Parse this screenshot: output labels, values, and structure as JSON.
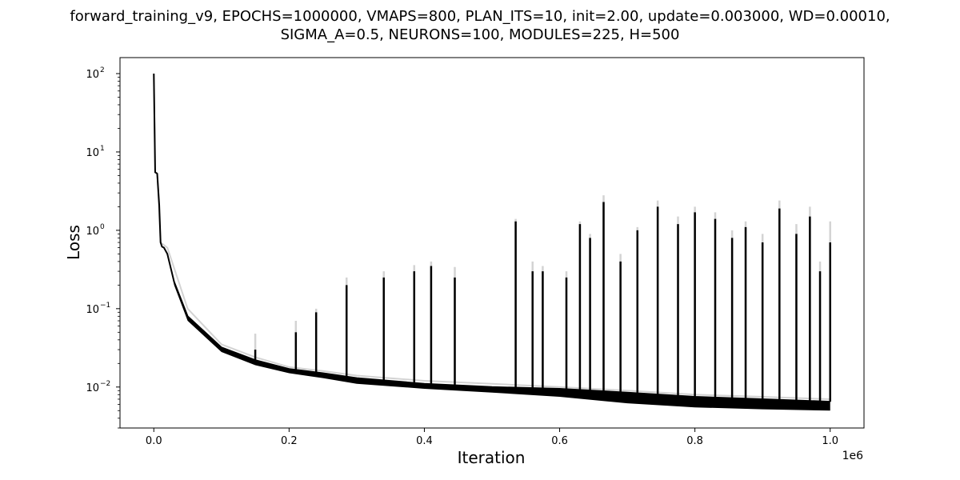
{
  "chart_data": {
    "type": "line",
    "title": "forward_training_v9, EPOCHS=1000000, VMAPS=800, PLAN_ITS=10, init=2.00, update=0.003000, WD=0.00010,",
    "subtitle": "SIGMA_A=0.5, NEURONS=100, MODULES=225, H=500",
    "xlabel": "Iteration",
    "ylabel": "Loss",
    "x_scale_label": "1e6",
    "xlim": [
      -0.05,
      1.05
    ],
    "ylim": [
      0.003,
      160
    ],
    "y_scale": "log",
    "grid": false,
    "x_tick_values": [
      0.0,
      0.2,
      0.4,
      0.6,
      0.8,
      1.0
    ],
    "x_tick_labels": [
      "0.0",
      "0.2",
      "0.4",
      "0.6",
      "0.8",
      "1.0"
    ],
    "y_ticks": [
      {
        "value": 0.01,
        "base": "10",
        "exp": "−2"
      },
      {
        "value": 0.1,
        "base": "10",
        "exp": "−1"
      },
      {
        "value": 1,
        "base": "10",
        "exp": "0"
      },
      {
        "value": 10,
        "base": "10",
        "exp": "1"
      },
      {
        "value": 100,
        "base": "10",
        "exp": "2"
      }
    ],
    "series": [
      {
        "color": "#d3d3d3",
        "x": [
          0.0,
          0.002,
          0.005,
          0.01,
          0.02,
          0.05,
          0.1,
          0.15,
          0.2,
          0.25,
          0.3,
          0.4,
          0.5,
          0.6,
          0.7,
          0.8,
          0.9,
          1.0
        ],
        "y": [
          100,
          5.5,
          5.3,
          0.7,
          0.6,
          0.1,
          0.035,
          0.024,
          0.018,
          0.016,
          0.014,
          0.012,
          0.011,
          0.01,
          0.009,
          0.008,
          0.0075,
          0.007
        ],
        "spikes": [
          {
            "x": 0.15,
            "y": 0.048
          },
          {
            "x": 0.21,
            "y": 0.07
          },
          {
            "x": 0.24,
            "y": 0.1
          },
          {
            "x": 0.285,
            "y": 0.25
          },
          {
            "x": 0.34,
            "y": 0.3
          },
          {
            "x": 0.385,
            "y": 0.36
          },
          {
            "x": 0.41,
            "y": 0.4
          },
          {
            "x": 0.445,
            "y": 0.34
          },
          {
            "x": 0.535,
            "y": 1.4
          },
          {
            "x": 0.56,
            "y": 0.4
          },
          {
            "x": 0.575,
            "y": 0.35
          },
          {
            "x": 0.61,
            "y": 0.3
          },
          {
            "x": 0.63,
            "y": 1.3
          },
          {
            "x": 0.645,
            "y": 0.9
          },
          {
            "x": 0.665,
            "y": 2.8
          },
          {
            "x": 0.69,
            "y": 0.5
          },
          {
            "x": 0.715,
            "y": 1.1
          },
          {
            "x": 0.745,
            "y": 2.4
          },
          {
            "x": 0.775,
            "y": 1.5
          },
          {
            "x": 0.8,
            "y": 2.0
          },
          {
            "x": 0.83,
            "y": 1.7
          },
          {
            "x": 0.855,
            "y": 1.0
          },
          {
            "x": 0.875,
            "y": 1.3
          },
          {
            "x": 0.9,
            "y": 0.9
          },
          {
            "x": 0.925,
            "y": 2.4
          },
          {
            "x": 0.95,
            "y": 1.2
          },
          {
            "x": 0.97,
            "y": 2.0
          },
          {
            "x": 0.985,
            "y": 0.4
          },
          {
            "x": 1.0,
            "y": 1.3
          }
        ]
      },
      {
        "color": "#000000",
        "x": [
          0.0,
          0.002,
          0.005,
          0.008,
          0.01,
          0.012,
          0.015,
          0.02,
          0.03,
          0.05,
          0.1,
          0.15,
          0.2,
          0.25,
          0.3,
          0.4,
          0.5,
          0.6,
          0.7,
          0.8,
          0.9,
          1.0
        ],
        "y": [
          100,
          5.5,
          5.3,
          2.1,
          0.7,
          0.62,
          0.6,
          0.5,
          0.22,
          0.08,
          0.032,
          0.022,
          0.017,
          0.015,
          0.013,
          0.011,
          0.01,
          0.0095,
          0.0085,
          0.0075,
          0.007,
          0.0065
        ],
        "lower": [
          100,
          5.5,
          5.3,
          2.1,
          0.7,
          0.62,
          0.6,
          0.5,
          0.2,
          0.07,
          0.028,
          0.019,
          0.015,
          0.013,
          0.011,
          0.0095,
          0.0085,
          0.0075,
          0.0062,
          0.0055,
          0.0052,
          0.005
        ],
        "spikes": [
          {
            "x": 0.15,
            "y": 0.03
          },
          {
            "x": 0.21,
            "y": 0.05
          },
          {
            "x": 0.24,
            "y": 0.09
          },
          {
            "x": 0.285,
            "y": 0.2
          },
          {
            "x": 0.34,
            "y": 0.25
          },
          {
            "x": 0.385,
            "y": 0.3
          },
          {
            "x": 0.41,
            "y": 0.35
          },
          {
            "x": 0.445,
            "y": 0.25
          },
          {
            "x": 0.535,
            "y": 1.3
          },
          {
            "x": 0.56,
            "y": 0.3
          },
          {
            "x": 0.575,
            "y": 0.3
          },
          {
            "x": 0.61,
            "y": 0.25
          },
          {
            "x": 0.63,
            "y": 1.2
          },
          {
            "x": 0.645,
            "y": 0.8
          },
          {
            "x": 0.665,
            "y": 2.3
          },
          {
            "x": 0.69,
            "y": 0.4
          },
          {
            "x": 0.715,
            "y": 1.0
          },
          {
            "x": 0.745,
            "y": 2.0
          },
          {
            "x": 0.775,
            "y": 1.2
          },
          {
            "x": 0.8,
            "y": 1.7
          },
          {
            "x": 0.83,
            "y": 1.4
          },
          {
            "x": 0.855,
            "y": 0.8
          },
          {
            "x": 0.875,
            "y": 1.1
          },
          {
            "x": 0.9,
            "y": 0.7
          },
          {
            "x": 0.925,
            "y": 1.9
          },
          {
            "x": 0.95,
            "y": 0.9
          },
          {
            "x": 0.97,
            "y": 1.5
          },
          {
            "x": 0.985,
            "y": 0.3
          },
          {
            "x": 1.0,
            "y": 0.7
          }
        ]
      }
    ]
  }
}
